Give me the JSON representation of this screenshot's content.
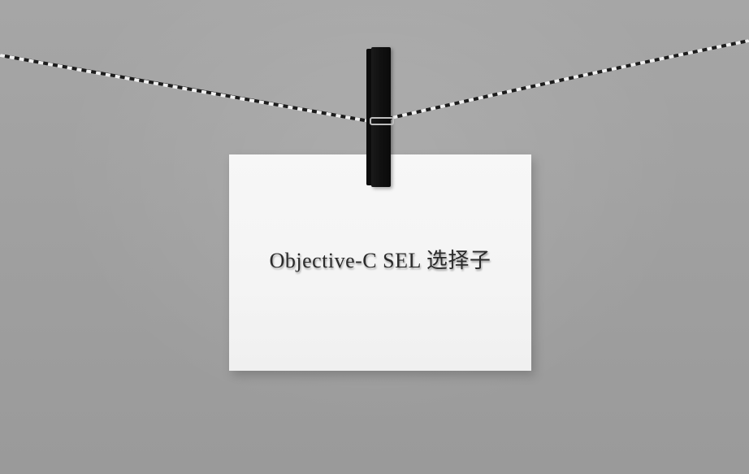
{
  "card": {
    "text": "Objective-C SEL 选择子"
  },
  "colors": {
    "background": "#a3a3a3",
    "card": "#f5f5f5",
    "clip": "#111111",
    "rope_dark": "#1c1c1c",
    "rope_light": "#eeeeee"
  }
}
